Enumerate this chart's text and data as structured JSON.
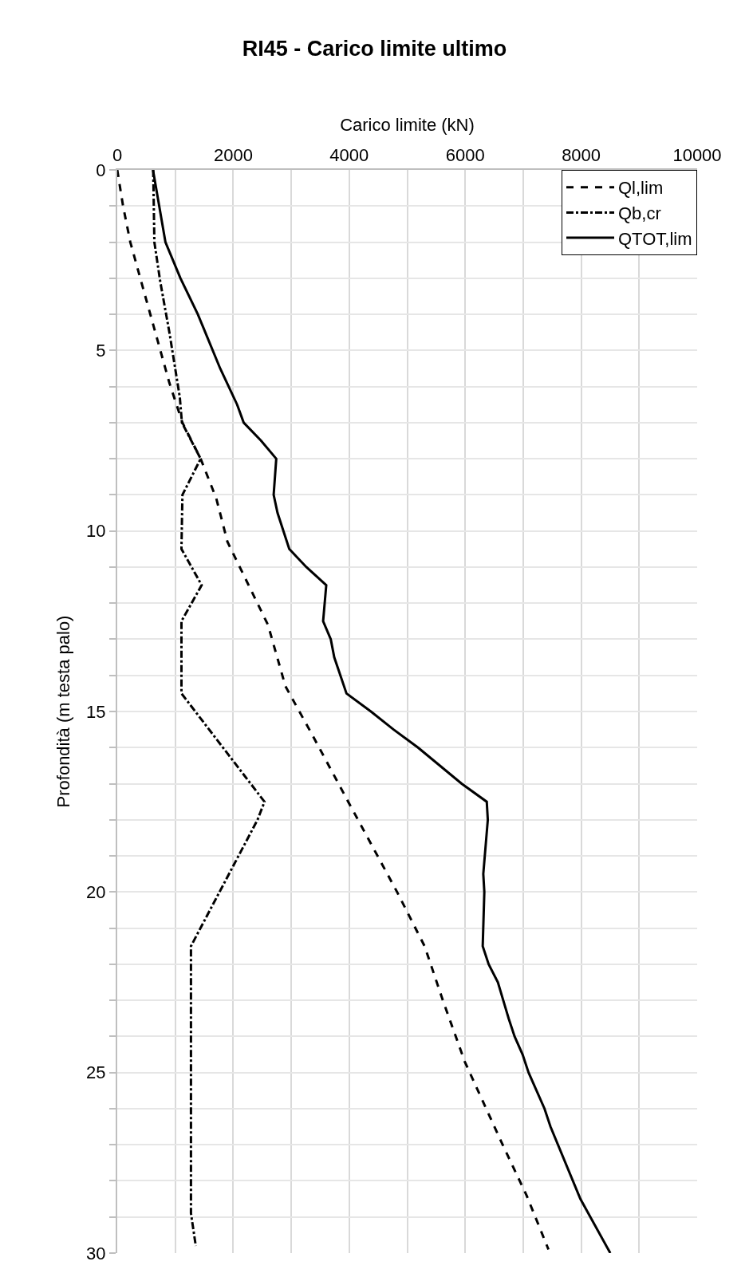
{
  "chart_data": {
    "type": "line",
    "title": "RI45 - Carico limite ultimo",
    "xlabel": "Carico limite (kN)",
    "ylabel": "Profondità (m testa palo)",
    "orientation": "horizontal",
    "xlim": [
      0,
      10000
    ],
    "xticks": [
      0,
      {
        "value": 1000,
        "label": null
      },
      2000,
      {
        "value": 3000,
        "label": null
      },
      4000,
      {
        "value": 5000,
        "label": null
      },
      6000,
      {
        "value": 7000,
        "label": null
      },
      8000,
      {
        "value": 9000,
        "label": null
      },
      10000
    ],
    "ylim": [
      30,
      0
    ],
    "yticks": [
      0,
      {
        "value": 1,
        "label": null
      },
      {
        "value": 2,
        "label": null
      },
      {
        "value": 3,
        "label": null
      },
      {
        "value": 4,
        "label": null
      },
      5,
      {
        "value": 6,
        "label": null
      },
      {
        "value": 7,
        "label": null
      },
      {
        "value": 8,
        "label": null
      },
      {
        "value": 9,
        "label": null
      },
      10,
      {
        "value": 11,
        "label": null
      },
      {
        "value": 12,
        "label": null
      },
      {
        "value": 13,
        "label": null
      },
      {
        "value": 14,
        "label": null
      },
      15,
      {
        "value": 16,
        "label": null
      },
      {
        "value": 17,
        "label": null
      },
      {
        "value": 18,
        "label": null
      },
      {
        "value": 19,
        "label": null
      },
      20,
      {
        "value": 21,
        "label": null
      },
      {
        "value": 22,
        "label": null
      },
      {
        "value": 23,
        "label": null
      },
      {
        "value": 24,
        "label": null
      },
      25,
      {
        "value": 26,
        "label": null
      },
      {
        "value": 27,
        "label": null
      },
      {
        "value": 28,
        "label": null
      },
      {
        "value": 29,
        "label": null
      },
      30
    ],
    "grid": true,
    "legend": "top right",
    "marker": "none",
    "series": [
      {
        "name": "Ql,lim",
        "color": "#000000",
        "line_style": "dashed",
        "x": [
          0,
          1,
          2,
          3.3,
          4.6,
          5.9,
          7,
          8,
          9.1,
          10.3,
          12.6,
          14.3,
          15.7,
          17.5,
          20,
          21.5,
          23,
          24.7,
          27,
          28.4,
          29.9
        ],
        "values": [
          0,
          100,
          225,
          449,
          674,
          899,
          1124,
          1438,
          1708,
          1900,
          2599,
          2900,
          3381,
          3983,
          4826,
          5300,
          5615,
          5993,
          6646,
          7058,
          7436
        ]
      },
      {
        "name": "Qb,cr",
        "color": "#000000",
        "line_style": "dashdot",
        "x": [
          0,
          2,
          3.1,
          4.5,
          6.3,
          7,
          8,
          9,
          10.5,
          11.5,
          12.5,
          14.5,
          17.5,
          18,
          21.5,
          28.9,
          29.8
        ],
        "values": [
          620,
          640,
          742,
          899,
          1079,
          1115,
          1438,
          1124,
          1107,
          1456,
          1107,
          1107,
          2539,
          2419,
          1271,
          1271,
          1354
        ]
      },
      {
        "name": "QTOT,lim",
        "color": "#000000",
        "line_style": "solid",
        "x": [
          0,
          2,
          3,
          4,
          5.5,
          6.5,
          7,
          7.5,
          8,
          9,
          9.5,
          10.5,
          11,
          11.5,
          12.5,
          13,
          13.5,
          14.5,
          15,
          15.5,
          16,
          17,
          17.5,
          18,
          19.5,
          20,
          21.5,
          22,
          22.5,
          23.5,
          24,
          24.5,
          25,
          26,
          26.5,
          28.5,
          30
        ],
        "values": [
          616,
          831,
          1090,
          1390,
          1775,
          2067,
          2180,
          2480,
          2742,
          2697,
          2764,
          2966,
          3261,
          3604,
          3550,
          3682,
          3742,
          3953,
          4374,
          4765,
          5187,
          5939,
          6372,
          6390,
          6312,
          6330,
          6302,
          6405,
          6564,
          6749,
          6852,
          6990,
          7093,
          7368,
          7471,
          7986,
          8502
        ]
      }
    ]
  }
}
